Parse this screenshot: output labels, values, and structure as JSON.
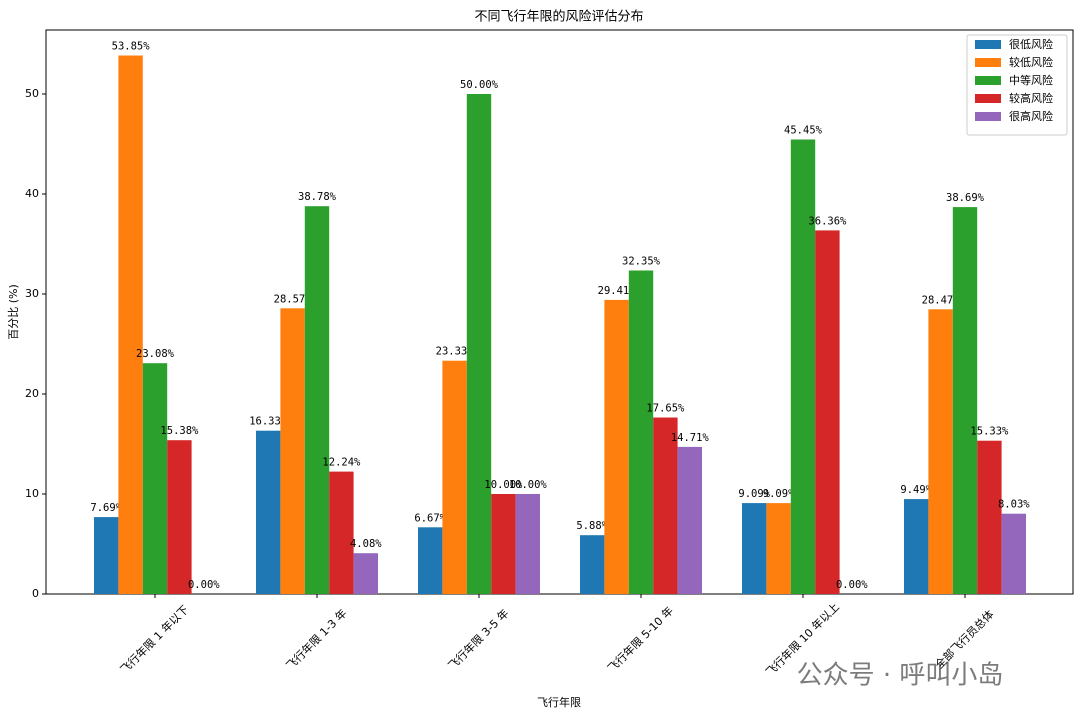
{
  "chart_data": {
    "type": "bar",
    "title": "不同飞行年限的风险评估分布",
    "xlabel": "飞行年限",
    "ylabel": "百分比 (%)",
    "categories": [
      "飞行年限 1 年以下",
      "飞行年限 1-3 年",
      "飞行年限 3-5 年",
      "飞行年限 5-10 年",
      "飞行年限 10 年以上",
      "全部飞行员总体"
    ],
    "series": [
      {
        "name": "很低风险",
        "color": "#1f77b4",
        "values": [
          7.69,
          16.33,
          6.67,
          5.88,
          9.09,
          9.49
        ],
        "value_labels": [
          "7.69%",
          "16.33%",
          "6.67%",
          "5.88%",
          "9.09%",
          "9.49%"
        ]
      },
      {
        "name": "较低风险",
        "color": "#ff7f0e",
        "values": [
          53.85,
          28.57,
          23.33,
          29.41,
          9.09,
          28.47
        ],
        "value_labels": [
          "53.85%",
          "28.57%",
          "23.33%",
          "29.41%",
          "9.09%",
          "28.47%"
        ]
      },
      {
        "name": "中等风险",
        "color": "#2ca02c",
        "values": [
          23.08,
          38.78,
          50.0,
          32.35,
          45.45,
          38.69
        ],
        "value_labels": [
          "23.08%",
          "38.78%",
          "50.00%",
          "32.35%",
          "45.45%",
          "38.69%"
        ]
      },
      {
        "name": "较高风险",
        "color": "#d62728",
        "values": [
          15.38,
          12.24,
          10.0,
          17.65,
          36.36,
          15.33
        ],
        "value_labels": [
          "15.38%",
          "12.24%",
          "10.00%",
          "17.65%",
          "36.36%",
          "15.33%"
        ]
      },
      {
        "name": "很高风险",
        "color": "#9467bd",
        "values": [
          0.0,
          4.08,
          10.0,
          14.71,
          0.0,
          8.03
        ],
        "value_labels": [
          "0.00%",
          "4.08%",
          "10.00%",
          "14.71%",
          "0.00%",
          "8.03%"
        ]
      }
    ],
    "ylim": [
      0,
      56.4
    ],
    "yticks": [
      0,
      10,
      20,
      30,
      40,
      50
    ],
    "grid": false,
    "legend": "upper right",
    "watermark": "公众号 · 呼叫小岛"
  }
}
